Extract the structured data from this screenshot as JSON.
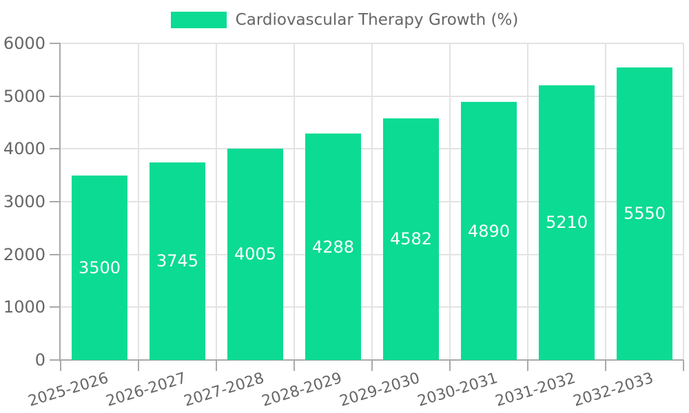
{
  "legend": {
    "label": "Cardiovascular Therapy Growth (%)"
  },
  "colors": {
    "bar": "#0bdb93",
    "axis": "#a9a9a9",
    "grid": "#e3e3e3",
    "text": "#666666",
    "value_label": "#ffffff",
    "background": "#ffffff"
  },
  "chart_data": {
    "type": "bar",
    "title": "",
    "xlabel": "",
    "ylabel": "",
    "categories": [
      "2025-2026",
      "2026-2027",
      "2027-2028",
      "2028-2029",
      "2029-2030",
      "2030-2031",
      "2031-2032",
      "2032-2033"
    ],
    "values": [
      3500,
      3745,
      4005,
      4288,
      4582,
      4890,
      5210,
      5550
    ],
    "series_name": "Cardiovascular Therapy Growth (%)",
    "value_labels_shown": true,
    "value_label_position": "inside-center",
    "ylim": [
      0,
      6000
    ],
    "yticks": [
      0,
      1000,
      2000,
      3000,
      4000,
      5000,
      6000
    ],
    "grid": true,
    "legend_position": "top-center",
    "x_label_rotation_deg": -17
  }
}
